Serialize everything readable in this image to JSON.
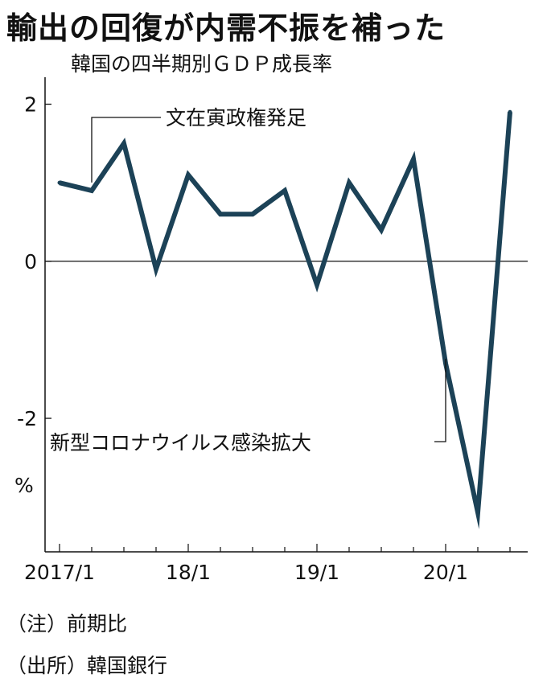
{
  "title": "輸出の回復が内需不振を補った",
  "subtitle": "韓国の四半期別ＧＤＰ成長率",
  "unit_label": "%",
  "notes": [
    "（注）前期比",
    "（出所）韓国銀行"
  ],
  "colors": {
    "line": "#1c4257",
    "axis": "#111111",
    "text": "#111111"
  },
  "chart_data": {
    "type": "line",
    "title": "韓国の四半期別ＧＤＰ成長率",
    "xlabel": "",
    "ylabel": "%",
    "x": [
      "2017/1",
      "2017/2",
      "2017/3",
      "2017/4",
      "2018/1",
      "2018/2",
      "2018/3",
      "2018/4",
      "2019/1",
      "2019/2",
      "2019/3",
      "2019/4",
      "2020/1",
      "2020/2",
      "2020/3"
    ],
    "x_tick_labels": [
      "2017/1",
      "18/1",
      "19/1",
      "20/1"
    ],
    "y_ticks": [
      "2",
      "0",
      "-2"
    ],
    "ylim": [
      -3.7,
      2.2
    ],
    "series": [
      {
        "values": [
          1.0,
          0.9,
          1.5,
          -0.1,
          1.1,
          0.6,
          0.6,
          0.9,
          -0.3,
          1.0,
          0.4,
          1.3,
          -1.3,
          -3.2,
          1.9
        ]
      }
    ],
    "annotations": [
      {
        "label": "文在寅政権発足",
        "at": "2017/2"
      },
      {
        "label": "新型コロナウイルス感染拡大",
        "at": "2020/1"
      }
    ],
    "grid": false,
    "legend": "none"
  }
}
